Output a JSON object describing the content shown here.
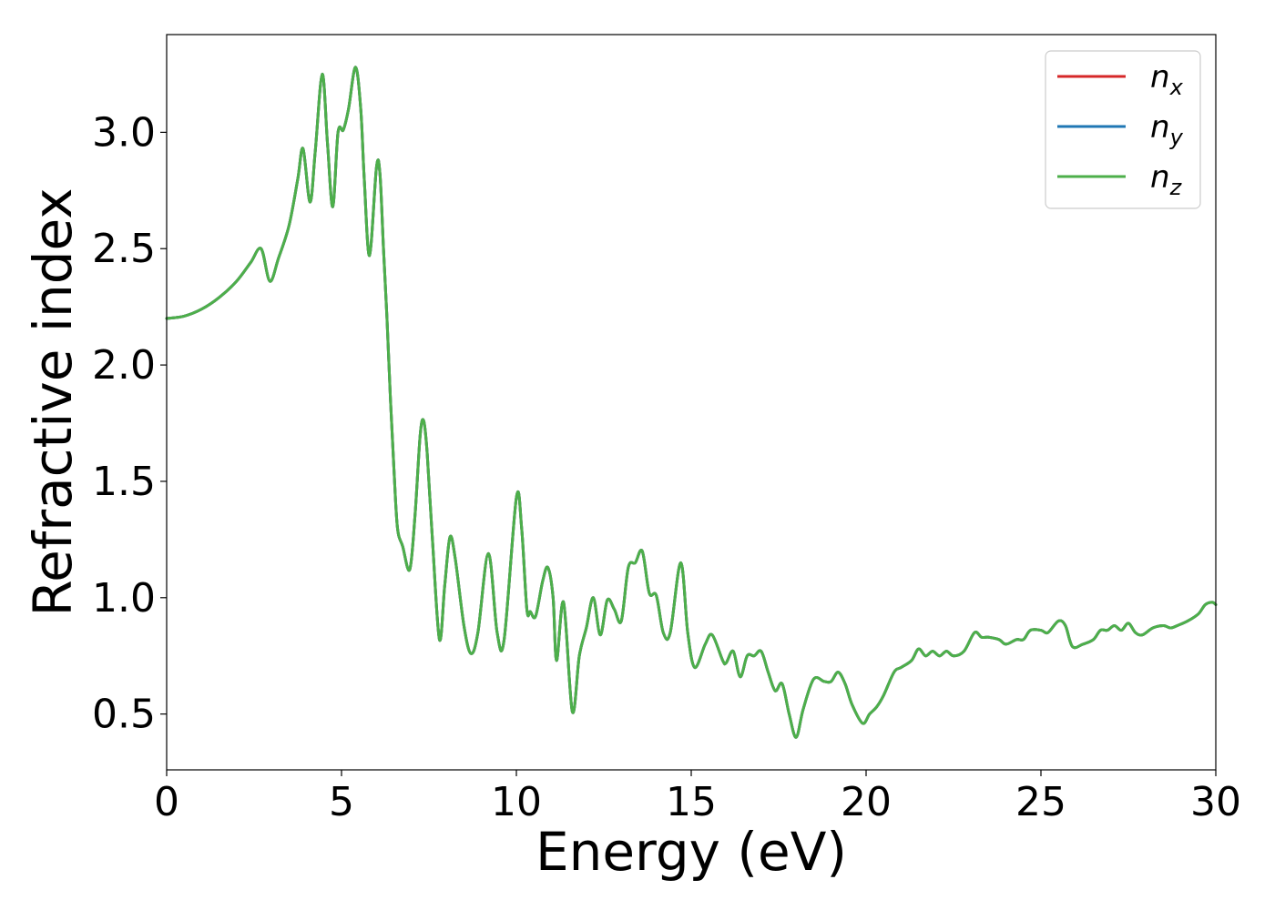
{
  "chart_data": {
    "type": "line",
    "xlabel": "Energy (eV)",
    "ylabel": "Refractive index",
    "xlim": [
      0,
      30
    ],
    "ylim": [
      0.26,
      3.42
    ],
    "grid": false,
    "legend_position": "top-right",
    "x_ticks": [
      0,
      5,
      10,
      15,
      20,
      25,
      30
    ],
    "x_tick_labels": [
      "0",
      "5",
      "10",
      "15",
      "20",
      "25",
      "30"
    ],
    "y_ticks": [
      0.5,
      1.0,
      1.5,
      2.0,
      2.5,
      3.0
    ],
    "y_tick_labels": [
      "0.5",
      "1.0",
      "1.5",
      "2.0",
      "2.5",
      "3.0"
    ],
    "x": [
      0.0,
      0.5,
      1.0,
      1.5,
      2.0,
      2.4,
      2.7,
      2.95,
      3.2,
      3.5,
      3.75,
      3.9,
      4.1,
      4.25,
      4.45,
      4.6,
      4.75,
      4.9,
      5.05,
      5.2,
      5.4,
      5.55,
      5.65,
      5.8,
      6.0,
      6.1,
      6.2,
      6.3,
      6.4,
      6.5,
      6.6,
      6.75,
      6.95,
      7.1,
      7.25,
      7.35,
      7.45,
      7.6,
      7.8,
      7.95,
      8.1,
      8.25,
      8.5,
      8.7,
      8.9,
      9.2,
      9.45,
      9.65,
      10.0,
      10.15,
      10.3,
      10.4,
      10.55,
      10.75,
      10.9,
      11.05,
      11.15,
      11.35,
      11.6,
      11.8,
      12.0,
      12.2,
      12.4,
      12.6,
      12.8,
      13.0,
      13.2,
      13.4,
      13.6,
      13.8,
      14.0,
      14.2,
      14.4,
      14.7,
      14.9,
      15.1,
      15.4,
      15.6,
      15.9,
      16.0,
      16.2,
      16.4,
      16.6,
      16.8,
      17.0,
      17.2,
      17.4,
      17.6,
      17.8,
      18.0,
      18.2,
      18.5,
      18.8,
      19.0,
      19.2,
      19.4,
      19.6,
      19.9,
      20.1,
      20.3,
      20.5,
      20.8,
      21.0,
      21.3,
      21.5,
      21.7,
      21.9,
      22.1,
      22.3,
      22.5,
      22.8,
      23.1,
      23.3,
      23.5,
      23.8,
      24.0,
      24.3,
      24.5,
      24.7,
      25.0,
      25.2,
      25.5,
      25.7,
      25.9,
      26.2,
      26.5,
      26.7,
      26.9,
      27.1,
      27.3,
      27.5,
      27.7,
      27.9,
      28.2,
      28.5,
      28.7,
      28.9,
      29.2,
      29.5,
      29.7,
      29.9,
      30.0
    ],
    "series": [
      {
        "name": "n_x",
        "color": "#d62728",
        "values": [
          2.2,
          2.21,
          2.24,
          2.29,
          2.36,
          2.44,
          2.5,
          2.36,
          2.46,
          2.6,
          2.8,
          2.93,
          2.7,
          2.92,
          3.25,
          2.95,
          2.68,
          3.0,
          3.01,
          3.1,
          3.28,
          3.1,
          2.8,
          2.47,
          2.85,
          2.82,
          2.5,
          2.2,
          1.85,
          1.55,
          1.3,
          1.22,
          1.12,
          1.35,
          1.7,
          1.76,
          1.62,
          1.25,
          0.82,
          1.05,
          1.26,
          1.17,
          0.88,
          0.76,
          0.85,
          1.19,
          0.85,
          0.82,
          1.43,
          1.3,
          0.95,
          0.94,
          0.92,
          1.07,
          1.13,
          1.0,
          0.73,
          0.98,
          0.51,
          0.75,
          0.87,
          1.0,
          0.84,
          0.99,
          0.95,
          0.9,
          1.13,
          1.15,
          1.2,
          1.02,
          1.01,
          0.85,
          0.85,
          1.15,
          0.85,
          0.7,
          0.8,
          0.84,
          0.73,
          0.72,
          0.77,
          0.66,
          0.75,
          0.75,
          0.77,
          0.68,
          0.6,
          0.63,
          0.5,
          0.4,
          0.52,
          0.65,
          0.64,
          0.64,
          0.68,
          0.63,
          0.54,
          0.46,
          0.5,
          0.53,
          0.58,
          0.68,
          0.7,
          0.73,
          0.78,
          0.75,
          0.77,
          0.75,
          0.77,
          0.75,
          0.77,
          0.85,
          0.83,
          0.83,
          0.82,
          0.8,
          0.82,
          0.82,
          0.86,
          0.86,
          0.85,
          0.9,
          0.88,
          0.79,
          0.8,
          0.82,
          0.86,
          0.86,
          0.88,
          0.86,
          0.89,
          0.85,
          0.84,
          0.87,
          0.88,
          0.87,
          0.88,
          0.9,
          0.93,
          0.97,
          0.98,
          0.97
        ]
      },
      {
        "name": "n_y",
        "color": "#1f77b4",
        "values": [
          2.2,
          2.21,
          2.24,
          2.29,
          2.36,
          2.44,
          2.5,
          2.36,
          2.46,
          2.6,
          2.8,
          2.93,
          2.7,
          2.92,
          3.25,
          2.95,
          2.68,
          3.0,
          3.01,
          3.1,
          3.28,
          3.1,
          2.8,
          2.47,
          2.85,
          2.82,
          2.5,
          2.2,
          1.85,
          1.55,
          1.3,
          1.22,
          1.12,
          1.35,
          1.7,
          1.76,
          1.62,
          1.25,
          0.82,
          1.05,
          1.26,
          1.17,
          0.88,
          0.76,
          0.85,
          1.19,
          0.85,
          0.82,
          1.43,
          1.3,
          0.95,
          0.94,
          0.92,
          1.07,
          1.13,
          1.0,
          0.73,
          0.98,
          0.51,
          0.75,
          0.87,
          1.0,
          0.84,
          0.99,
          0.95,
          0.9,
          1.13,
          1.15,
          1.2,
          1.02,
          1.01,
          0.85,
          0.85,
          1.15,
          0.85,
          0.7,
          0.8,
          0.84,
          0.73,
          0.72,
          0.77,
          0.66,
          0.75,
          0.75,
          0.77,
          0.68,
          0.6,
          0.63,
          0.5,
          0.4,
          0.52,
          0.65,
          0.64,
          0.64,
          0.68,
          0.63,
          0.54,
          0.46,
          0.5,
          0.53,
          0.58,
          0.68,
          0.7,
          0.73,
          0.78,
          0.75,
          0.77,
          0.75,
          0.77,
          0.75,
          0.77,
          0.85,
          0.83,
          0.83,
          0.82,
          0.8,
          0.82,
          0.82,
          0.86,
          0.86,
          0.85,
          0.9,
          0.88,
          0.79,
          0.8,
          0.82,
          0.86,
          0.86,
          0.88,
          0.86,
          0.89,
          0.85,
          0.84,
          0.87,
          0.88,
          0.87,
          0.88,
          0.9,
          0.93,
          0.97,
          0.98,
          0.97
        ]
      },
      {
        "name": "n_z",
        "color": "#4daf4a",
        "values": [
          2.2,
          2.21,
          2.24,
          2.29,
          2.36,
          2.44,
          2.5,
          2.36,
          2.46,
          2.6,
          2.8,
          2.93,
          2.7,
          2.92,
          3.25,
          2.95,
          2.68,
          3.0,
          3.01,
          3.1,
          3.28,
          3.1,
          2.8,
          2.47,
          2.85,
          2.82,
          2.5,
          2.2,
          1.85,
          1.55,
          1.3,
          1.22,
          1.12,
          1.35,
          1.7,
          1.76,
          1.62,
          1.25,
          0.82,
          1.05,
          1.26,
          1.17,
          0.88,
          0.76,
          0.85,
          1.19,
          0.85,
          0.82,
          1.43,
          1.3,
          0.95,
          0.94,
          0.92,
          1.07,
          1.13,
          1.0,
          0.73,
          0.98,
          0.51,
          0.75,
          0.87,
          1.0,
          0.84,
          0.99,
          0.95,
          0.9,
          1.13,
          1.15,
          1.2,
          1.02,
          1.01,
          0.85,
          0.85,
          1.15,
          0.85,
          0.7,
          0.8,
          0.84,
          0.73,
          0.72,
          0.77,
          0.66,
          0.75,
          0.75,
          0.77,
          0.68,
          0.6,
          0.63,
          0.5,
          0.4,
          0.52,
          0.65,
          0.64,
          0.64,
          0.68,
          0.63,
          0.54,
          0.46,
          0.5,
          0.53,
          0.58,
          0.68,
          0.7,
          0.73,
          0.78,
          0.75,
          0.77,
          0.75,
          0.77,
          0.75,
          0.77,
          0.85,
          0.83,
          0.83,
          0.82,
          0.8,
          0.82,
          0.82,
          0.86,
          0.86,
          0.85,
          0.9,
          0.88,
          0.79,
          0.8,
          0.82,
          0.86,
          0.86,
          0.88,
          0.86,
          0.89,
          0.85,
          0.84,
          0.87,
          0.88,
          0.87,
          0.88,
          0.9,
          0.93,
          0.97,
          0.98,
          0.97
        ]
      }
    ],
    "legend": [
      {
        "base": "n",
        "sub": "x",
        "color": "#d62728"
      },
      {
        "base": "n",
        "sub": "y",
        "color": "#1f77b4"
      },
      {
        "base": "n",
        "sub": "z",
        "color": "#4daf4a"
      }
    ]
  }
}
